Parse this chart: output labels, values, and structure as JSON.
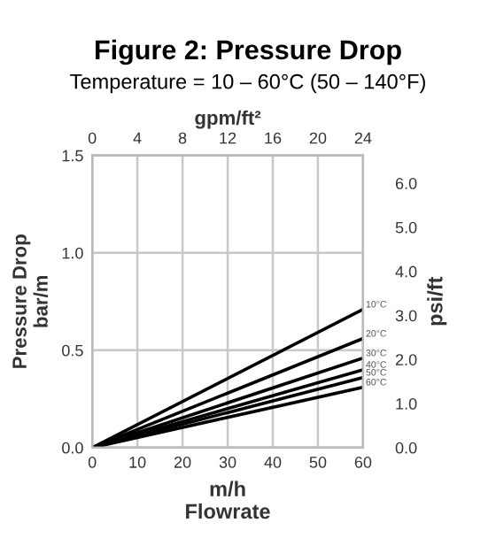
{
  "chart_data": {
    "type": "line",
    "title": "Figure 2: Pressure Drop",
    "subtitle": "Temperature = 10 – 60°C (50 – 140°F)",
    "xlabel": "m/h\nFlowrate",
    "ylabel": "Pressure Drop\nbar/m",
    "y2label": "psi/ft",
    "x2label": "gpm/ft²",
    "x": [
      0,
      60
    ],
    "series": [
      {
        "name": "10°C",
        "color": "#000000",
        "values": [
          0,
          0.71
        ]
      },
      {
        "name": "20°C",
        "color": "#000000",
        "values": [
          0,
          0.56
        ]
      },
      {
        "name": "30°C",
        "color": "#000000",
        "values": [
          0,
          0.46
        ]
      },
      {
        "name": "40°C",
        "color": "#000000",
        "values": [
          0,
          0.4
        ]
      },
      {
        "name": "50°C",
        "color": "#000000",
        "values": [
          0,
          0.36
        ]
      },
      {
        "name": "60°C",
        "color": "#000000",
        "values": [
          0,
          0.31
        ]
      }
    ],
    "xlim": [
      0,
      60
    ],
    "xticks": [
      0,
      10,
      20,
      30,
      40,
      50,
      60
    ],
    "ylim": [
      0,
      1.5
    ],
    "yticks": [
      {
        "value": 0,
        "label": "0.0"
      },
      {
        "value": 0.5,
        "label": "0.5"
      },
      {
        "value": 1.0,
        "label": "1.0"
      },
      {
        "value": 1.5,
        "label": "1.5"
      }
    ],
    "y2lim": [
      0,
      6.63
    ],
    "y2ticks": [
      {
        "value": 0,
        "label": "0.0"
      },
      {
        "value": 1,
        "label": "1.0"
      },
      {
        "value": 2,
        "label": "2.0"
      },
      {
        "value": 3,
        "label": "3.0"
      },
      {
        "value": 4,
        "label": "4.0"
      },
      {
        "value": 5,
        "label": "5.0"
      },
      {
        "value": 6,
        "label": "6.0"
      }
    ],
    "x2lim": [
      0,
      24
    ],
    "x2ticks": [
      0,
      4,
      8,
      12,
      16,
      20,
      24
    ],
    "grid": true,
    "legend": false,
    "marker": "none",
    "line_style": "solid"
  }
}
